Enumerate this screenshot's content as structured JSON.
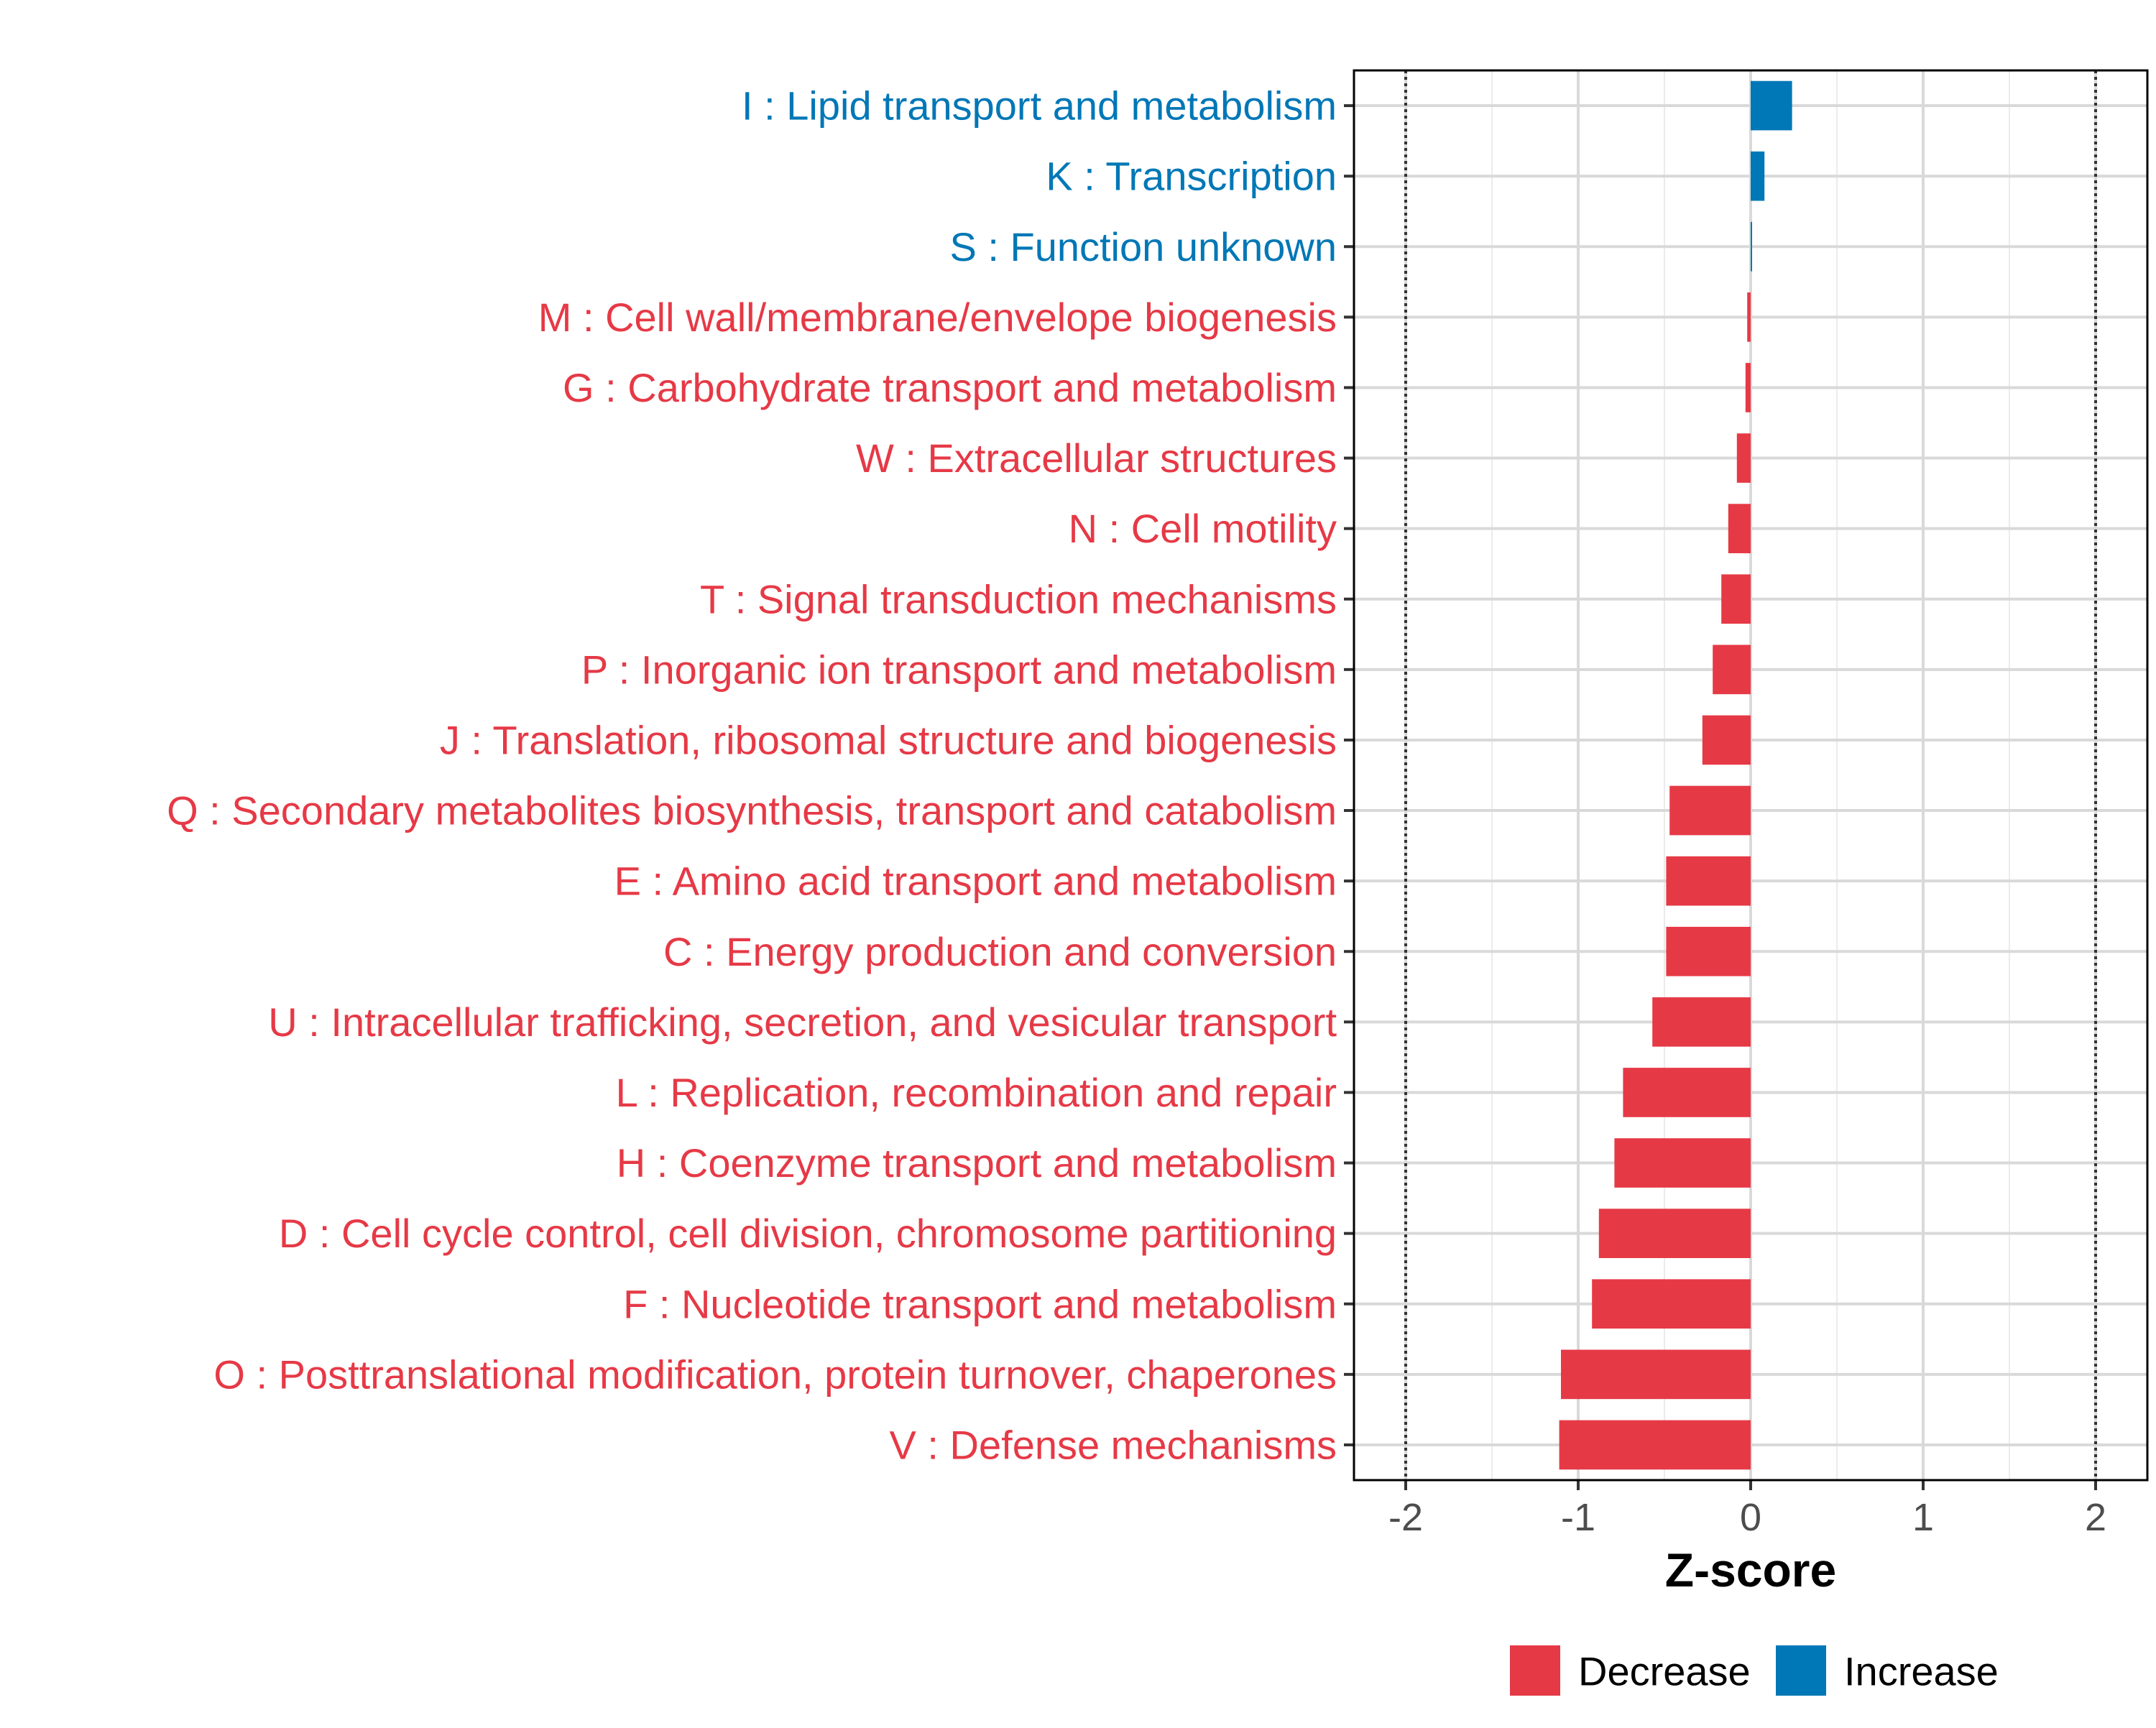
{
  "chart_data": {
    "type": "bar",
    "orientation": "horizontal",
    "xlabel": "Z-score",
    "xlim": [
      -2.3,
      2.3
    ],
    "x_ticks": [
      -2,
      -1,
      0,
      1,
      2
    ],
    "x_tick_labels": [
      "-2",
      "-1",
      "0",
      "1",
      "2"
    ],
    "reference_lines": [
      -2,
      2
    ],
    "grid": true,
    "legend_position": "bottom",
    "legend": [
      {
        "label": "Decrease",
        "color": "#E63946"
      },
      {
        "label": "Increase",
        "color": "#0077B6"
      }
    ],
    "categories": [
      "I : Lipid transport and metabolism",
      "K : Transcription",
      "S : Function unknown",
      "M : Cell wall/membrane/envelope biogenesis",
      "G : Carbohydrate transport and metabolism",
      "W : Extracellular structures",
      "N : Cell motility",
      "T : Signal transduction mechanisms",
      "P : Inorganic ion transport and metabolism",
      "J : Translation, ribosomal structure and biogenesis",
      "Q : Secondary metabolites biosynthesis, transport and catabolism",
      "E : Amino acid transport and metabolism",
      "C : Energy production and conversion",
      "U : Intracellular trafficking, secretion, and vesicular transport",
      "L : Replication, recombination and repair",
      "H : Coenzyme transport and metabolism",
      "D : Cell cycle control, cell division, chromosome partitioning",
      "F : Nucleotide transport and metabolism",
      "O : Posttranslational modification, protein turnover, chaperones",
      "V : Defense mechanisms"
    ],
    "values": [
      0.24,
      0.08,
      0.005,
      -0.02,
      -0.03,
      -0.08,
      -0.13,
      -0.17,
      -0.22,
      -0.28,
      -0.47,
      -0.49,
      -0.49,
      -0.57,
      -0.74,
      -0.79,
      -0.88,
      -0.92,
      -1.1,
      -1.11
    ],
    "groups": [
      "Increase",
      "Increase",
      "Increase",
      "Decrease",
      "Decrease",
      "Decrease",
      "Decrease",
      "Decrease",
      "Decrease",
      "Decrease",
      "Decrease",
      "Decrease",
      "Decrease",
      "Decrease",
      "Decrease",
      "Decrease",
      "Decrease",
      "Decrease",
      "Decrease",
      "Decrease"
    ]
  }
}
